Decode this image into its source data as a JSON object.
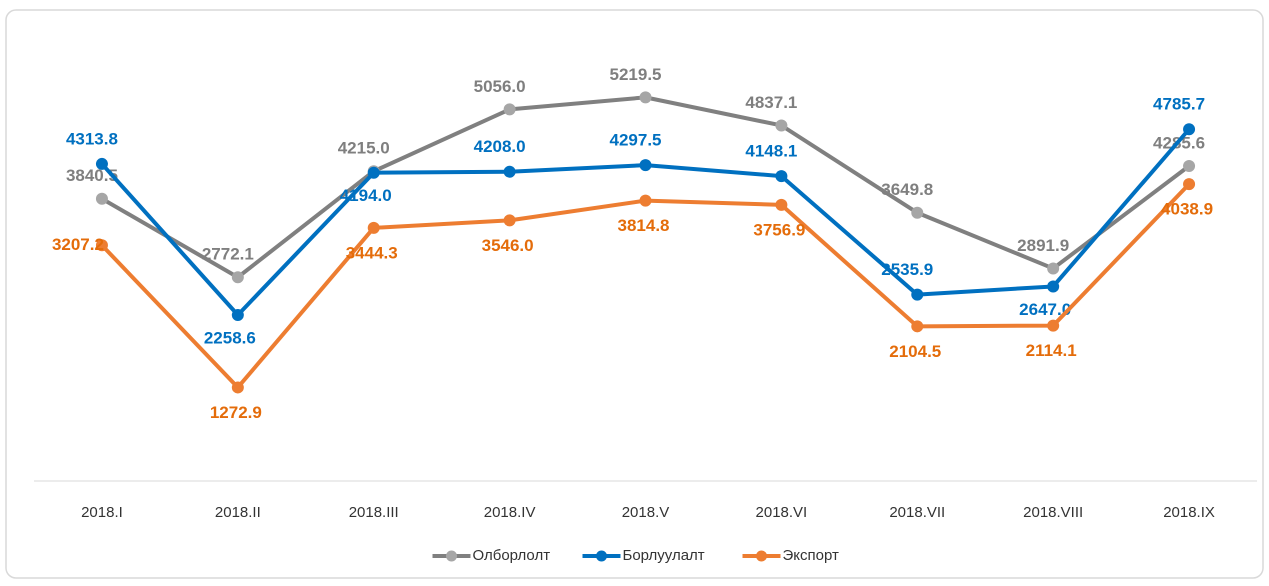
{
  "chart_data": {
    "type": "line",
    "categories": [
      "2018.I",
      "2018.II",
      "2018.III",
      "2018.IV",
      "2018.V",
      "2018.VI",
      "2018.VII",
      "2018.VIII",
      "2018.IX"
    ],
    "ylim": [
      0,
      6000
    ],
    "series": [
      {
        "name": "Олборлолт",
        "color": "#808080",
        "values": [
          3840.5,
          2772.1,
          4215.0,
          5056.0,
          5219.5,
          4837.1,
          3649.8,
          2891.9,
          4285.6
        ],
        "value_labels": [
          "3840.5",
          "2772.1",
          "4215.0",
          "5056.0",
          "5219.5",
          "4837.1",
          "3649.8",
          "2891.9",
          "4285.6"
        ]
      },
      {
        "name": "Борлуулалт",
        "color": "#0070c0",
        "values": [
          4313.8,
          2258.6,
          4194.0,
          4208.0,
          4297.5,
          4148.1,
          2535.9,
          2647.0,
          4785.7
        ],
        "value_labels": [
          "4313.8",
          "2258.6",
          "4194.0",
          "4208.0",
          "4297.5",
          "4148.1",
          "2535.9",
          "2647.0",
          "4785.7"
        ]
      },
      {
        "name": "Экспорт",
        "color": "#ed7d31",
        "values": [
          3207.2,
          1272.9,
          3444.3,
          3546.0,
          3814.8,
          3756.9,
          2104.5,
          2114.1,
          4038.9
        ],
        "value_labels": [
          "3207.2",
          "1272.9",
          "3444.3",
          "3546.0",
          "3814.8",
          "3756.9",
          "2104.5",
          "2114.1",
          "4038.9"
        ]
      }
    ],
    "legend": "bottom"
  }
}
